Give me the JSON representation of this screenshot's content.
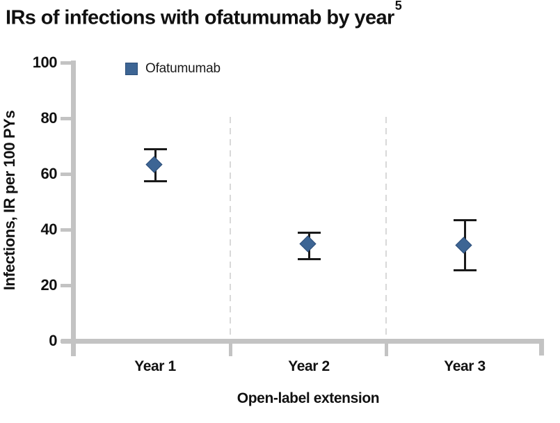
{
  "chart_data": {
    "type": "scatter",
    "title": "IRs of infections with ofatumumab by year",
    "title_superscript": "5",
    "xlabel": "Open-label extension",
    "ylabel": "Infections, IR per 100 PYs",
    "ylim": [
      0,
      100
    ],
    "yticks": [
      100,
      80,
      60,
      40,
      20,
      0
    ],
    "categories": [
      "Year 1",
      "Year 2",
      "Year 3"
    ],
    "legend": {
      "entries": [
        "Ofatumumab"
      ],
      "position": "inside-top-left"
    },
    "grid": "dashed vertical separators between year segments",
    "error_bars": "95% CI whiskers with caps",
    "series": [
      {
        "name": "Ofatumumab",
        "marker": "diamond",
        "points": [
          {
            "category": "Year 1",
            "value": 63.0,
            "ci_low": 57.5,
            "ci_high": 69.0
          },
          {
            "category": "Year 2",
            "value": 34.5,
            "ci_low": 29.5,
            "ci_high": 39.0
          },
          {
            "category": "Year 3",
            "value": 34.0,
            "ci_low": 25.5,
            "ci_high": 43.5
          }
        ]
      }
    ],
    "colors": {
      "marker_fill": "#3D6594",
      "marker_border": "#2C4E79",
      "error_bar": "#1A1A1A",
      "axis": "#C3C3C3",
      "separator": "#D8D8D8",
      "text": "#111111"
    }
  }
}
